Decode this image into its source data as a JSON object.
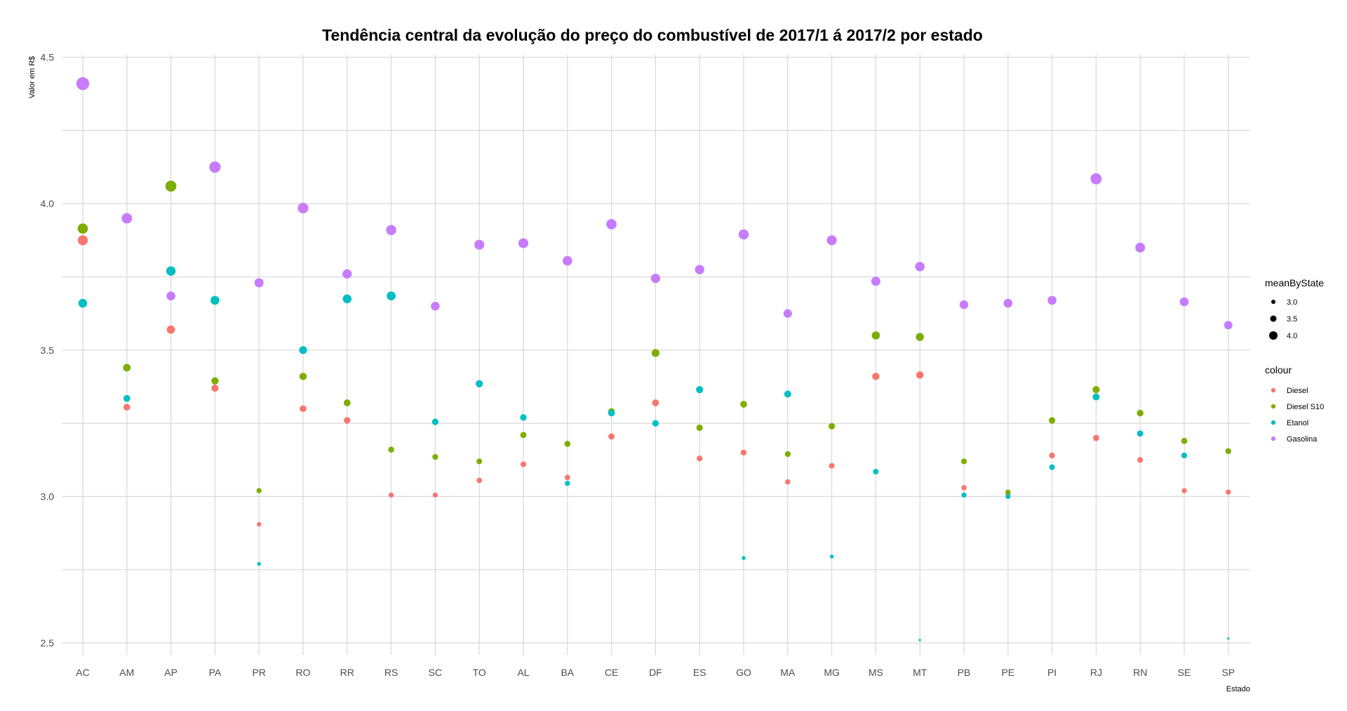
{
  "chart_data": {
    "type": "scatter",
    "title": "Tendência central da evolução do preço do combustível de 2017/1 á 2017/2 por estado",
    "xlabel": "Estado",
    "ylabel": "Valor em R$",
    "categories": [
      "AC",
      "AM",
      "AP",
      "PA",
      "PR",
      "RO",
      "RR",
      "RS",
      "SC",
      "TO",
      "AL",
      "BA",
      "CE",
      "DF",
      "ES",
      "GO",
      "MA",
      "MG",
      "MS",
      "MT",
      "PB",
      "PE",
      "PI",
      "RJ",
      "RN",
      "SE",
      "SP"
    ],
    "ylim": [
      2.45,
      4.5
    ],
    "yticks": [
      2.5,
      3.0,
      3.5,
      4.0,
      4.5
    ],
    "ytick_labels": [
      "2.5",
      "3.0",
      "3.5",
      "4.0",
      "4.5"
    ],
    "grid": true,
    "legend_position": "right",
    "series": [
      {
        "name": "Diesel",
        "color": "#F8766D",
        "values": [
          3.875,
          3.305,
          3.57,
          3.37,
          2.905,
          3.3,
          3.26,
          3.005,
          3.005,
          3.055,
          3.11,
          3.065,
          3.205,
          3.32,
          3.13,
          3.15,
          3.05,
          3.105,
          3.41,
          3.415,
          3.03,
          3.01,
          3.14,
          3.2,
          3.125,
          3.02,
          3.015
        ]
      },
      {
        "name": "Diesel S10",
        "color": "#7CAE00",
        "values": [
          3.915,
          3.44,
          4.06,
          3.395,
          3.02,
          3.41,
          3.32,
          3.16,
          3.135,
          3.12,
          3.21,
          3.18,
          3.29,
          3.49,
          3.235,
          3.315,
          3.145,
          3.24,
          3.55,
          3.545,
          3.12,
          3.015,
          3.26,
          3.365,
          3.285,
          3.19,
          3.155
        ]
      },
      {
        "name": "Etanol",
        "color": "#00BFC4",
        "values": [
          3.66,
          3.335,
          3.77,
          3.67,
          2.77,
          3.5,
          3.675,
          3.685,
          3.255,
          3.385,
          3.27,
          3.045,
          3.285,
          3.25,
          3.365,
          2.79,
          3.35,
          2.795,
          3.085,
          2.51,
          3.005,
          3.0,
          3.1,
          3.34,
          3.215,
          3.14,
          2.515
        ]
      },
      {
        "name": "Gasolina",
        "color": "#C77CFF",
        "values": [
          4.41,
          3.95,
          3.685,
          4.125,
          3.73,
          3.985,
          3.76,
          3.91,
          3.65,
          3.86,
          3.865,
          3.805,
          3.93,
          3.745,
          3.775,
          3.895,
          3.625,
          3.875,
          3.735,
          3.785,
          3.655,
          3.66,
          3.67,
          4.085,
          3.85,
          3.665,
          3.585
        ]
      }
    ],
    "size_legend": {
      "title": "meanByState",
      "values": [
        3.0,
        3.5,
        4.0
      ],
      "labels": [
        "3.0",
        "3.5",
        "4.0"
      ]
    },
    "colour_legend": {
      "title": "colour",
      "labels": [
        "Diesel",
        "Diesel S10",
        "Etanol",
        "Gasolina"
      ]
    }
  }
}
